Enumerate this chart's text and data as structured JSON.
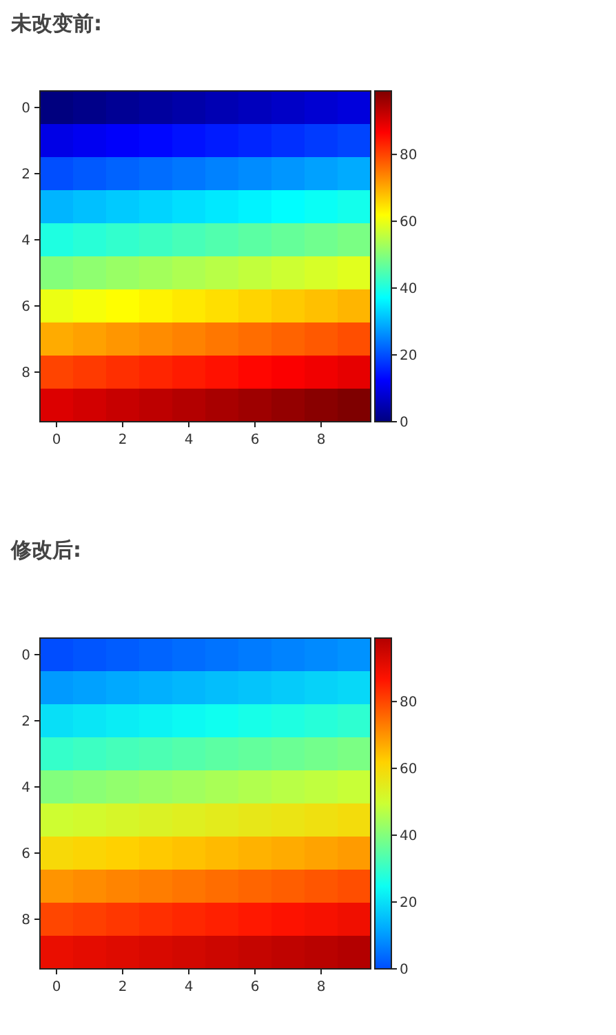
{
  "chart_data": [
    {
      "type": "heatmap",
      "title": "未改变前:",
      "xlim": [
        -0.5,
        9.5
      ],
      "xticks": [
        0,
        2,
        4,
        6,
        8
      ],
      "ylim": [
        9.5,
        -0.5
      ],
      "yticks": [
        0,
        2,
        4,
        6,
        8
      ],
      "clim": [
        0,
        99
      ],
      "cticks": [
        0,
        20,
        40,
        60,
        80
      ],
      "colors": [
        "#00007f",
        "#0000ff",
        "#007fff",
        "#00ffff",
        "#7fff7f",
        "#ffff00",
        "#ff7f00",
        "#ff0000",
        "#7f0000"
      ],
      "cells": [
        [
          0,
          1,
          2,
          3,
          4,
          5,
          6,
          7,
          8,
          9
        ],
        [
          10,
          11,
          12,
          13,
          14,
          15,
          16,
          17,
          18,
          19
        ],
        [
          20,
          21,
          22,
          23,
          24,
          25,
          26,
          27,
          28,
          29
        ],
        [
          30,
          31,
          32,
          33,
          34,
          35,
          36,
          37,
          38,
          39
        ],
        [
          40,
          41,
          42,
          43,
          44,
          45,
          46,
          47,
          48,
          49
        ],
        [
          50,
          51,
          52,
          53,
          54,
          55,
          56,
          57,
          58,
          59
        ],
        [
          60,
          61,
          62,
          63,
          64,
          65,
          66,
          67,
          68,
          69
        ],
        [
          70,
          71,
          72,
          73,
          74,
          75,
          76,
          77,
          78,
          79
        ],
        [
          80,
          81,
          82,
          83,
          84,
          85,
          86,
          87,
          88,
          89
        ],
        [
          90,
          91,
          92,
          93,
          94,
          95,
          96,
          97,
          98,
          99
        ]
      ]
    },
    {
      "type": "heatmap",
      "title": "修改后:",
      "xlim": [
        -0.5,
        9.5
      ],
      "xticks": [
        0,
        2,
        4,
        6,
        8
      ],
      "ylim": [
        9.5,
        -0.5
      ],
      "yticks": [
        0,
        2,
        4,
        6,
        8
      ],
      "clim": [
        0,
        99
      ],
      "cticks": [
        0,
        20,
        40,
        60,
        80
      ],
      "colors": [
        "#004dff",
        "#00acff",
        "#0dfff2",
        "#6cff93",
        "#ccff33",
        "#ffd200",
        "#ff7300",
        "#ff1300",
        "#b30000"
      ],
      "cells": [
        [
          0,
          1,
          2,
          3,
          4,
          5,
          6,
          7,
          8,
          9
        ],
        [
          10,
          11,
          12,
          13,
          14,
          15,
          16,
          17,
          18,
          19
        ],
        [
          20,
          21,
          22,
          23,
          24,
          25,
          26,
          27,
          28,
          29
        ],
        [
          30,
          31,
          32,
          33,
          34,
          35,
          36,
          37,
          38,
          39
        ],
        [
          40,
          41,
          42,
          43,
          44,
          45,
          46,
          47,
          48,
          49
        ],
        [
          50,
          51,
          52,
          53,
          54,
          55,
          56,
          57,
          58,
          59
        ],
        [
          60,
          61,
          62,
          63,
          64,
          65,
          66,
          67,
          68,
          69
        ],
        [
          70,
          71,
          72,
          73,
          74,
          75,
          76,
          77,
          78,
          79
        ],
        [
          80,
          81,
          82,
          83,
          84,
          85,
          86,
          87,
          88,
          89
        ],
        [
          90,
          91,
          92,
          93,
          94,
          95,
          96,
          97,
          98,
          99
        ]
      ]
    }
  ]
}
